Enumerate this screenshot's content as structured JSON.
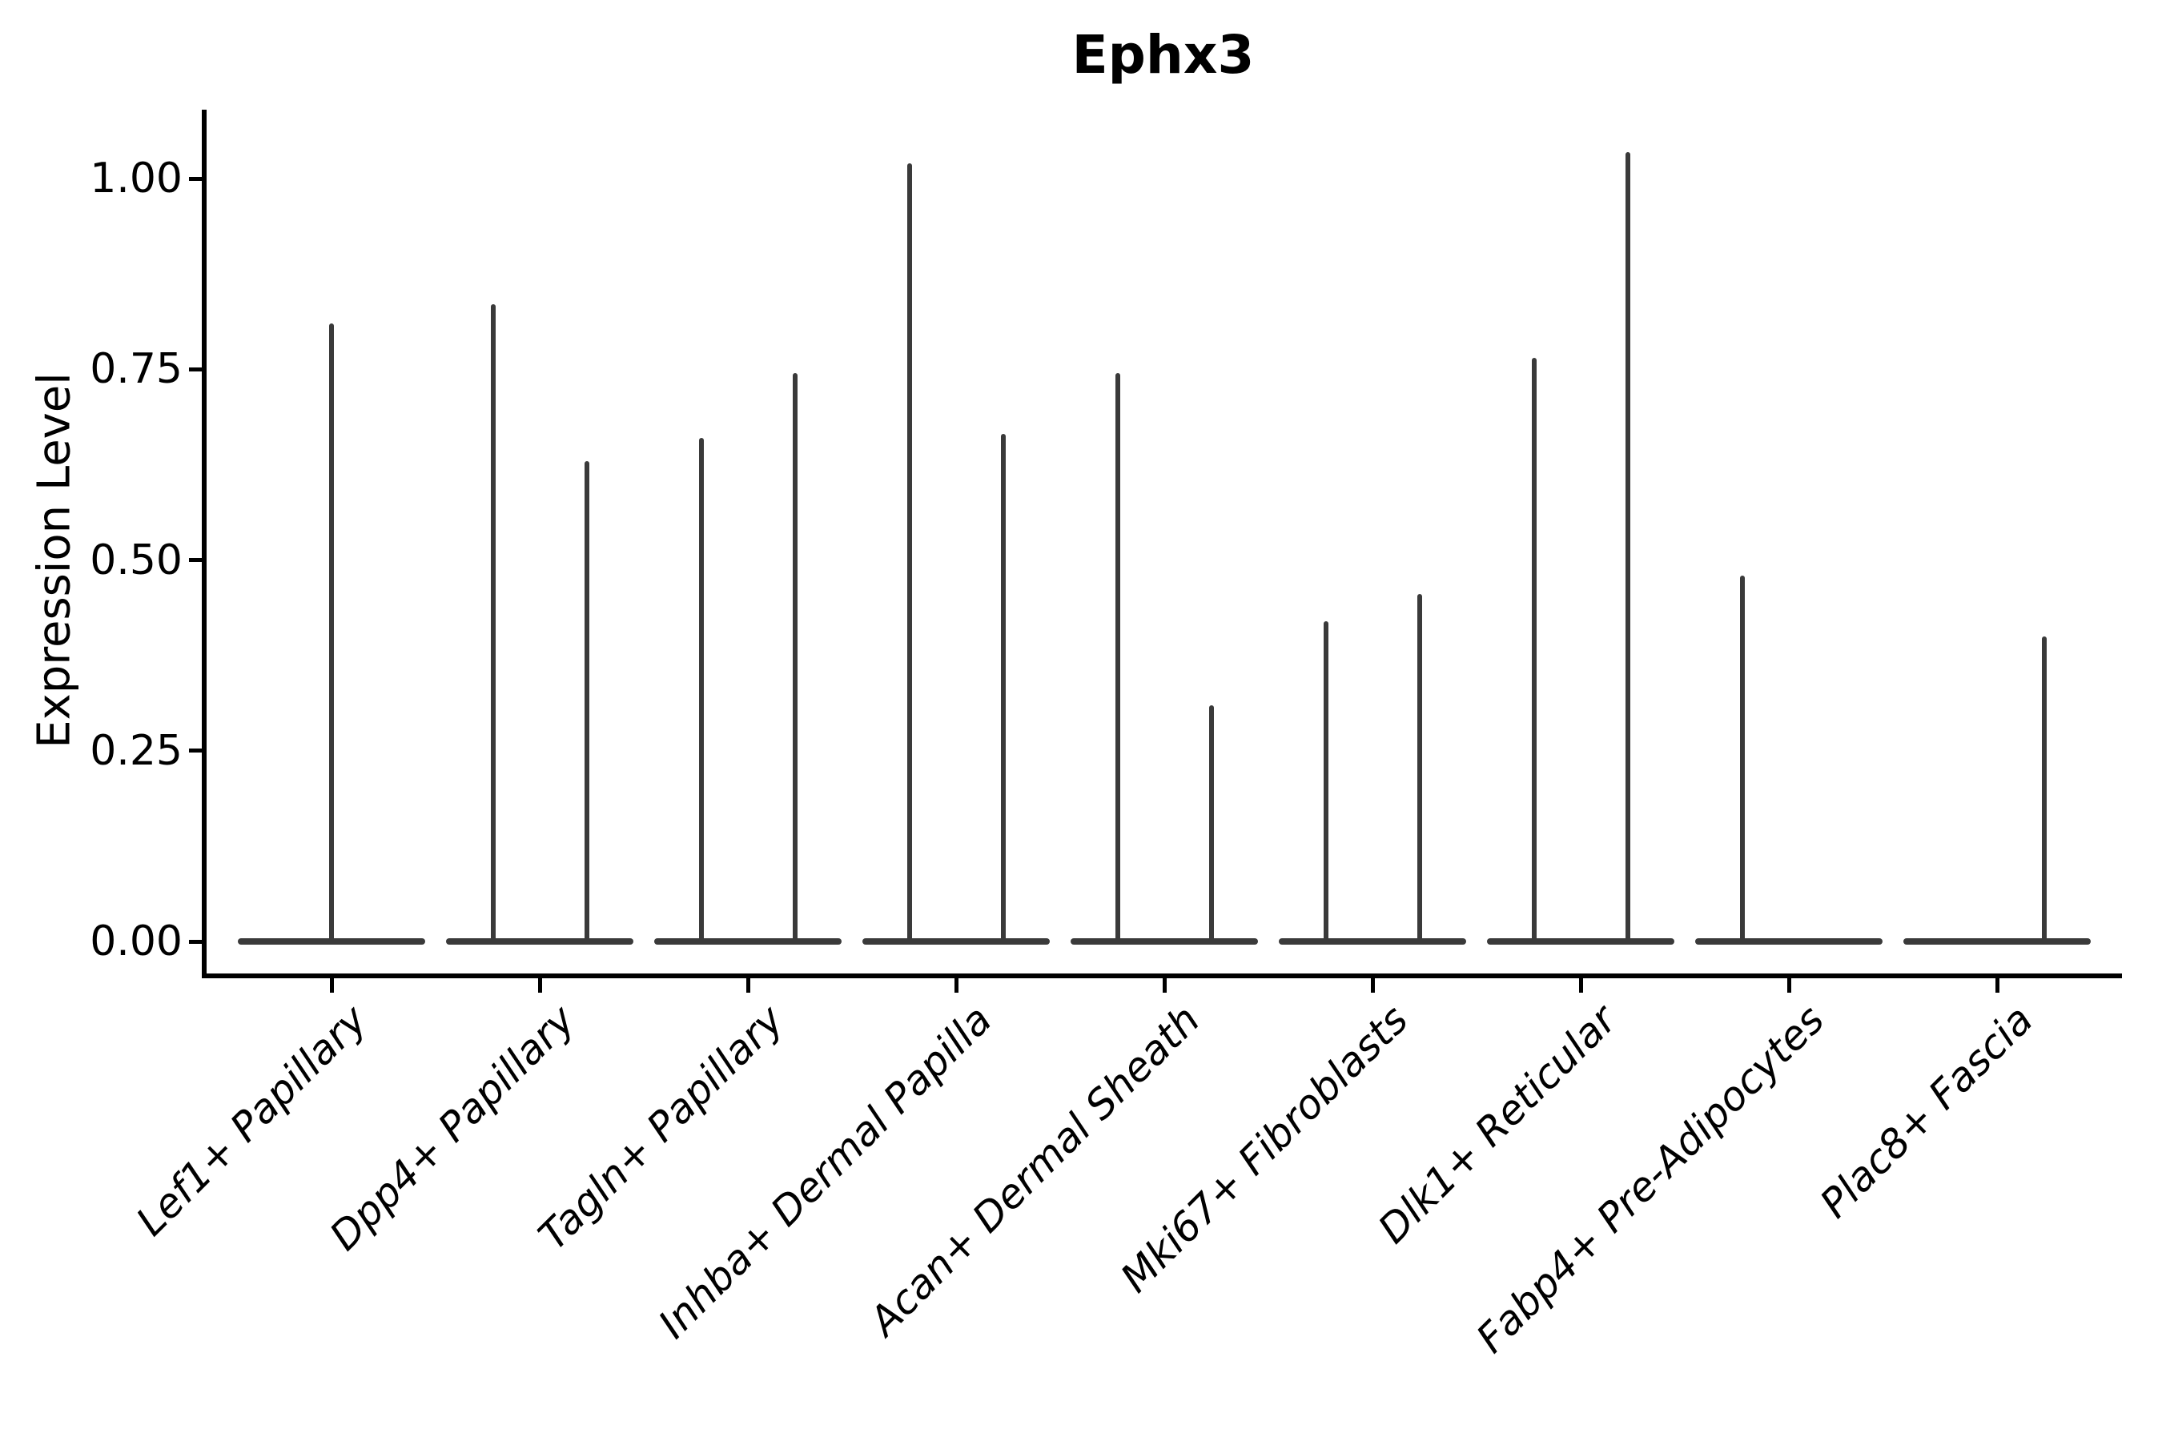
{
  "title": "Ephx3",
  "y_axis": {
    "label": "Expression Level"
  },
  "chart_data": {
    "type": "violin",
    "title": "Ephx3",
    "xlabel": "",
    "ylabel": "Expression Level",
    "ylim": [
      -0.05,
      1.09
    ],
    "grid": false,
    "legend": "none",
    "base_value": 0.0,
    "style": {
      "violin_line_color": "#3a3a3a",
      "axis_color": "#000000",
      "background": "#ffffff",
      "x_label_style": "italic",
      "x_label_rotation_deg": 45
    },
    "yticks": [
      {
        "value": 1.0,
        "label": "1.00"
      },
      {
        "value": 0.75,
        "label": "0.75"
      },
      {
        "value": 0.5,
        "label": "0.50"
      },
      {
        "value": 0.25,
        "label": "0.25"
      },
      {
        "value": 0.0,
        "label": "0.00"
      }
    ],
    "categories": [
      {
        "label": "Lef1+ Papillary",
        "violins": [
          {
            "position": "center",
            "max": 0.81
          }
        ]
      },
      {
        "label": "Dpp4+ Papillary",
        "violins": [
          {
            "position": "left",
            "max": 0.835
          },
          {
            "position": "right",
            "max": 0.63
          }
        ]
      },
      {
        "label": "Tagln+ Papillary",
        "violins": [
          {
            "position": "left",
            "max": 0.66
          },
          {
            "position": "right",
            "max": 0.745
          }
        ]
      },
      {
        "label": "Inhba+ Dermal Papilla",
        "violins": [
          {
            "position": "left",
            "max": 1.02
          },
          {
            "position": "right",
            "max": 0.665
          }
        ]
      },
      {
        "label": "Acan+ Dermal Sheath",
        "violins": [
          {
            "position": "left",
            "max": 0.745
          },
          {
            "position": "right",
            "max": 0.31
          }
        ]
      },
      {
        "label": "Mki67+ Fibroblasts",
        "violins": [
          {
            "position": "left",
            "max": 0.42
          },
          {
            "position": "right",
            "max": 0.455
          }
        ]
      },
      {
        "label": "Dlk1+ Reticular",
        "violins": [
          {
            "position": "left",
            "max": 0.765
          },
          {
            "position": "right",
            "max": 1.035
          }
        ]
      },
      {
        "label": "Fabp4+ Pre-Adipocytes",
        "violins": [
          {
            "position": "left",
            "max": 0.48
          }
        ]
      },
      {
        "label": "Plac8+ Fascia",
        "violins": [
          {
            "position": "right",
            "max": 0.4
          }
        ]
      }
    ]
  }
}
